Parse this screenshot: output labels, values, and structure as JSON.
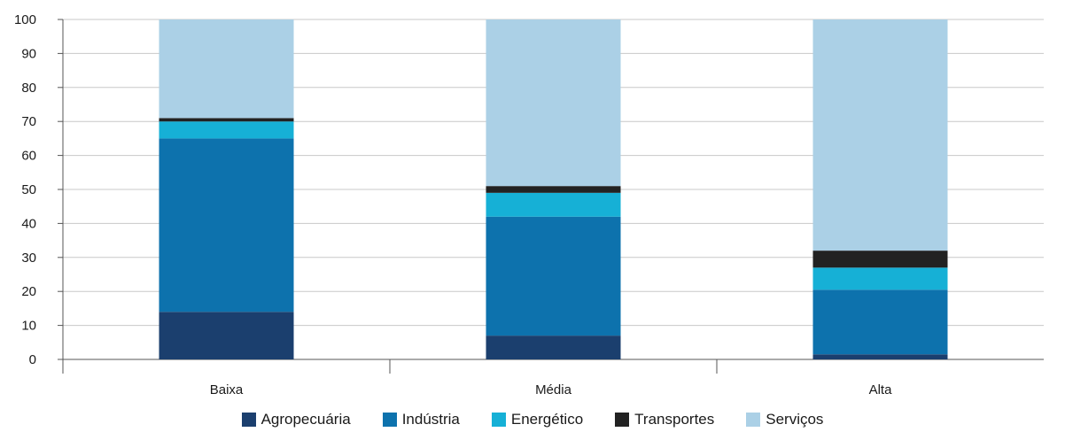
{
  "chart_data": {
    "type": "bar",
    "stacked": true,
    "categories": [
      "Baixa",
      "Média",
      "Alta"
    ],
    "series": [
      {
        "name": "Agropecuária",
        "color": "#1b3f6e",
        "values": [
          14,
          7,
          1.5
        ]
      },
      {
        "name": "Indústria",
        "color": "#0d72ad",
        "values": [
          51,
          35,
          19
        ]
      },
      {
        "name": "Energético",
        "color": "#16b0d6",
        "values": [
          5,
          7,
          6.5
        ]
      },
      {
        "name": "Transportes",
        "color": "#222222",
        "values": [
          1,
          2,
          5
        ]
      },
      {
        "name": "Serviços",
        "color": "#abd0e6",
        "values": [
          29,
          49,
          68
        ]
      }
    ],
    "ylim": [
      0,
      100
    ],
    "yticks": [
      "0",
      "10",
      "20",
      "30",
      "40",
      "50",
      "60",
      "70",
      "80",
      "90",
      "100"
    ],
    "grid": true,
    "legend_position": "bottom"
  }
}
